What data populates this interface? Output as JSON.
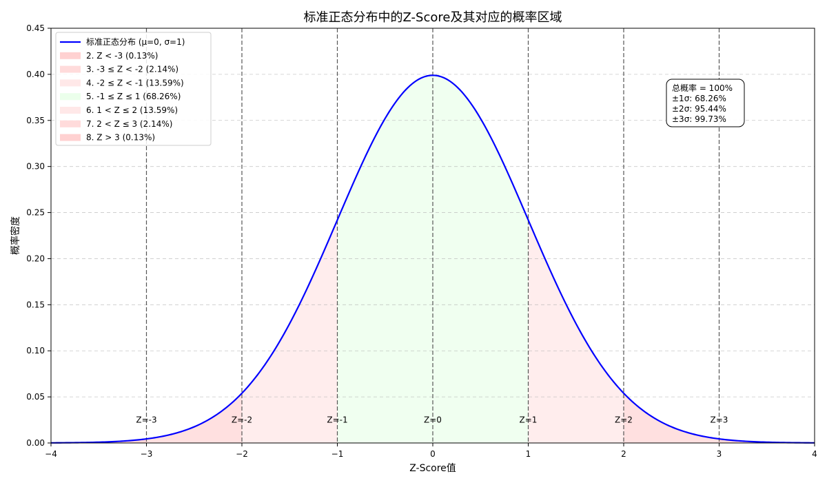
{
  "chart_data": {
    "type": "line",
    "title": "标准正态分布中的Z-Score及其对应的概率区域",
    "xlabel": "Z-Score值",
    "ylabel": "概率密度",
    "xlim": [
      -4,
      4
    ],
    "ylim": [
      0,
      0.45
    ],
    "grid": "y-dashed",
    "legend_placement": "top-left",
    "x_ticks": [
      -4,
      -3,
      -2,
      -1,
      0,
      1,
      2,
      3,
      4
    ],
    "x_tick_labels": [
      "−4",
      "−3",
      "−2",
      "−1",
      "0",
      "1",
      "2",
      "3",
      "4"
    ],
    "y_ticks": [
      0,
      0.05,
      0.1,
      0.15,
      0.2,
      0.25,
      0.3,
      0.35,
      0.4,
      0.45
    ],
    "y_tick_labels": [
      "0.00",
      "0.05",
      "0.10",
      "0.15",
      "0.20",
      "0.25",
      "0.30",
      "0.35",
      "0.40",
      "0.45"
    ],
    "series": [
      {
        "name": "标准正态分布 (μ=0, σ=1)",
        "color": "#0000ff",
        "distribution": "normal",
        "mean": 0,
        "std": 1
      }
    ],
    "regions": [
      {
        "label": "2. Z < -3 (0.13%)",
        "from": -4,
        "to": -3,
        "color": "#ffcccc",
        "opacity": 0.8
      },
      {
        "label": "3. -3 ≤ Z < -2 (2.14%)",
        "from": -3,
        "to": -2,
        "color": "#ffcccc",
        "opacity": 0.6
      },
      {
        "label": "4. -2 ≤ Z < -1 (13.59%)",
        "from": -2,
        "to": -1,
        "color": "#ffcccc",
        "opacity": 0.35
      },
      {
        "label": "5. -1 ≤ Z ≤ 1 (68.26%)",
        "from": -1,
        "to": 1,
        "color": "#ccffcc",
        "opacity": 0.3
      },
      {
        "label": "6. 1 < Z ≤ 2 (13.59%)",
        "from": 1,
        "to": 2,
        "color": "#ffcccc",
        "opacity": 0.35
      },
      {
        "label": "7. 2 < Z ≤ 3 (2.14%)",
        "from": 2,
        "to": 3,
        "color": "#ffcccc",
        "opacity": 0.6
      },
      {
        "label": "8. Z > 3 (0.13%)",
        "from": 3,
        "to": 4,
        "color": "#ffcccc",
        "opacity": 0.8
      }
    ],
    "vlines": [
      {
        "x": -3,
        "label": "Z=-3"
      },
      {
        "x": -2,
        "label": "Z=-2"
      },
      {
        "x": -1,
        "label": "Z=-1"
      },
      {
        "x": 0,
        "label": "Z=0"
      },
      {
        "x": 1,
        "label": "Z=1"
      },
      {
        "x": 2,
        "label": "Z=2"
      },
      {
        "x": 3,
        "label": "Z=3"
      }
    ],
    "vline_label_y": 0.025,
    "info_box": {
      "lines": [
        "总概率 = 100%",
        "±1σ: 68.26%",
        "±2σ: 95.44%",
        "±3σ: 99.73%"
      ]
    }
  }
}
